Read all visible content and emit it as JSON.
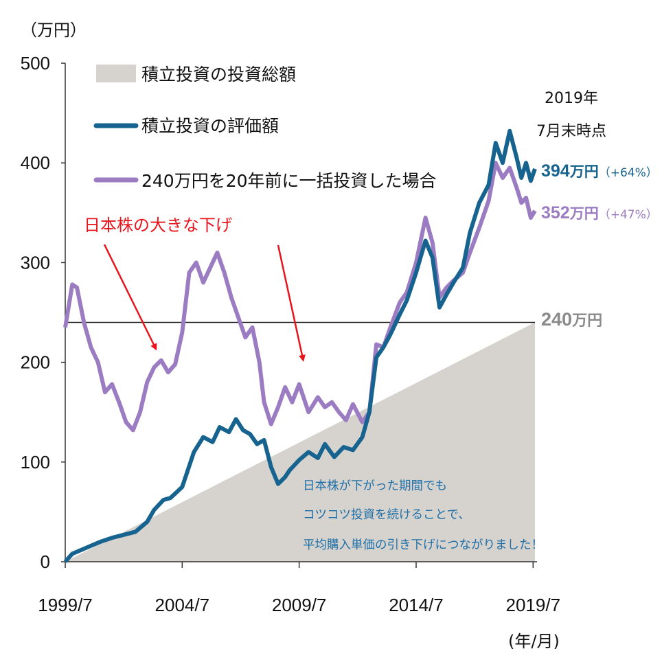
{
  "chart_data": {
    "type": "area",
    "y_unit_label": "（万円）",
    "x_unit_label": "(年/月)",
    "ylim": [
      0,
      500
    ],
    "yticks": [
      0,
      100,
      200,
      300,
      400,
      500
    ],
    "xlim": [
      1999.5,
      2019.58
    ],
    "xticks": [
      {
        "value": 1999.5,
        "label": "1999/7"
      },
      {
        "value": 2004.5,
        "label": "2004/7"
      },
      {
        "value": 2009.5,
        "label": "2009/7"
      },
      {
        "value": 2014.5,
        "label": "2014/7"
      },
      {
        "value": 2019.5,
        "label": "2019/7"
      }
    ],
    "series": [
      {
        "name": "積立投資の投資総額",
        "kind": "area",
        "color": "#d6d3ce",
        "x": [
          1999.5,
          2019.58
        ],
        "y": [
          0,
          240
        ]
      },
      {
        "name": "積立投資の評価額",
        "kind": "line",
        "color": "#17638f",
        "x": [
          1999.5,
          1999.8,
          2000.2,
          2000.6,
          2001.0,
          2001.5,
          2002.0,
          2002.5,
          2003.0,
          2003.3,
          2003.7,
          2004.0,
          2004.5,
          2005.0,
          2005.4,
          2005.8,
          2006.1,
          2006.5,
          2006.8,
          2007.1,
          2007.4,
          2007.7,
          2008.0,
          2008.3,
          2008.6,
          2008.9,
          2009.1,
          2009.5,
          2009.9,
          2010.3,
          2010.6,
          2011.0,
          2011.4,
          2011.8,
          2012.2,
          2012.5,
          2012.8,
          2013.1,
          2013.4,
          2013.8,
          2014.1,
          2014.5,
          2014.9,
          2015.2,
          2015.5,
          2015.8,
          2016.1,
          2016.5,
          2016.8,
          2017.2,
          2017.6,
          2017.9,
          2018.2,
          2018.5,
          2018.8,
          2019.0,
          2019.2,
          2019.4,
          2019.58
        ],
        "y": [
          0,
          8,
          12,
          16,
          20,
          24,
          27,
          30,
          40,
          52,
          62,
          64,
          75,
          110,
          125,
          120,
          135,
          130,
          143,
          132,
          128,
          118,
          122,
          95,
          78,
          85,
          92,
          102,
          110,
          104,
          118,
          105,
          115,
          112,
          125,
          150,
          205,
          215,
          228,
          248,
          262,
          290,
          322,
          305,
          255,
          268,
          280,
          295,
          330,
          360,
          378,
          420,
          400,
          432,
          405,
          385,
          400,
          382,
          394
        ]
      },
      {
        "name": "240万円を20年前に一括投資した場合",
        "kind": "line",
        "color": "#9b7cc2",
        "x": [
          1999.5,
          1999.8,
          2000.0,
          2000.3,
          2000.6,
          2000.9,
          2001.2,
          2001.5,
          2001.8,
          2002.1,
          2002.4,
          2002.7,
          2003.0,
          2003.3,
          2003.6,
          2003.9,
          2004.2,
          2004.5,
          2004.8,
          2005.1,
          2005.4,
          2005.7,
          2006.0,
          2006.3,
          2006.6,
          2006.9,
          2007.2,
          2007.5,
          2007.8,
          2008.0,
          2008.3,
          2008.6,
          2008.9,
          2009.2,
          2009.5,
          2009.9,
          2010.3,
          2010.6,
          2010.9,
          2011.2,
          2011.5,
          2011.8,
          2012.2,
          2012.5,
          2012.8,
          2013.1,
          2013.4,
          2013.8,
          2014.1,
          2014.5,
          2014.9,
          2015.2,
          2015.5,
          2015.8,
          2016.1,
          2016.5,
          2016.8,
          2017.2,
          2017.6,
          2017.9,
          2018.2,
          2018.5,
          2018.8,
          2019.0,
          2019.2,
          2019.4,
          2019.58
        ],
        "y": [
          235,
          278,
          275,
          240,
          215,
          200,
          170,
          178,
          160,
          140,
          132,
          150,
          180,
          195,
          202,
          190,
          198,
          230,
          290,
          300,
          280,
          295,
          310,
          290,
          265,
          245,
          225,
          235,
          200,
          160,
          138,
          155,
          175,
          160,
          178,
          150,
          165,
          155,
          160,
          150,
          142,
          158,
          140,
          150,
          218,
          215,
          235,
          260,
          270,
          300,
          345,
          320,
          265,
          275,
          282,
          290,
          310,
          335,
          362,
          400,
          385,
          395,
          375,
          360,
          365,
          345,
          352
        ]
      }
    ],
    "reference_line": {
      "value": 240,
      "label_num": "240",
      "label_unit": "万円"
    },
    "end_labels": {
      "heading_line1": "2019年",
      "heading_line2": "7月末時点",
      "valuation_num": "394",
      "valuation_unit": "万円",
      "valuation_pct": "（+64%）",
      "lumpsum_num": "352",
      "lumpsum_unit": "万円",
      "lumpsum_pct": "（+47%）"
    },
    "annotations": {
      "red_label": "日本株の大きな下げ",
      "blue_note": [
        "日本株が下がった期間でも",
        "コツコツ投資を続けることで、",
        "平均購入単価の引き下げにつながりました！"
      ]
    },
    "colors": {
      "red": "#e8141b",
      "blue_note": "#1e6fa8"
    }
  }
}
